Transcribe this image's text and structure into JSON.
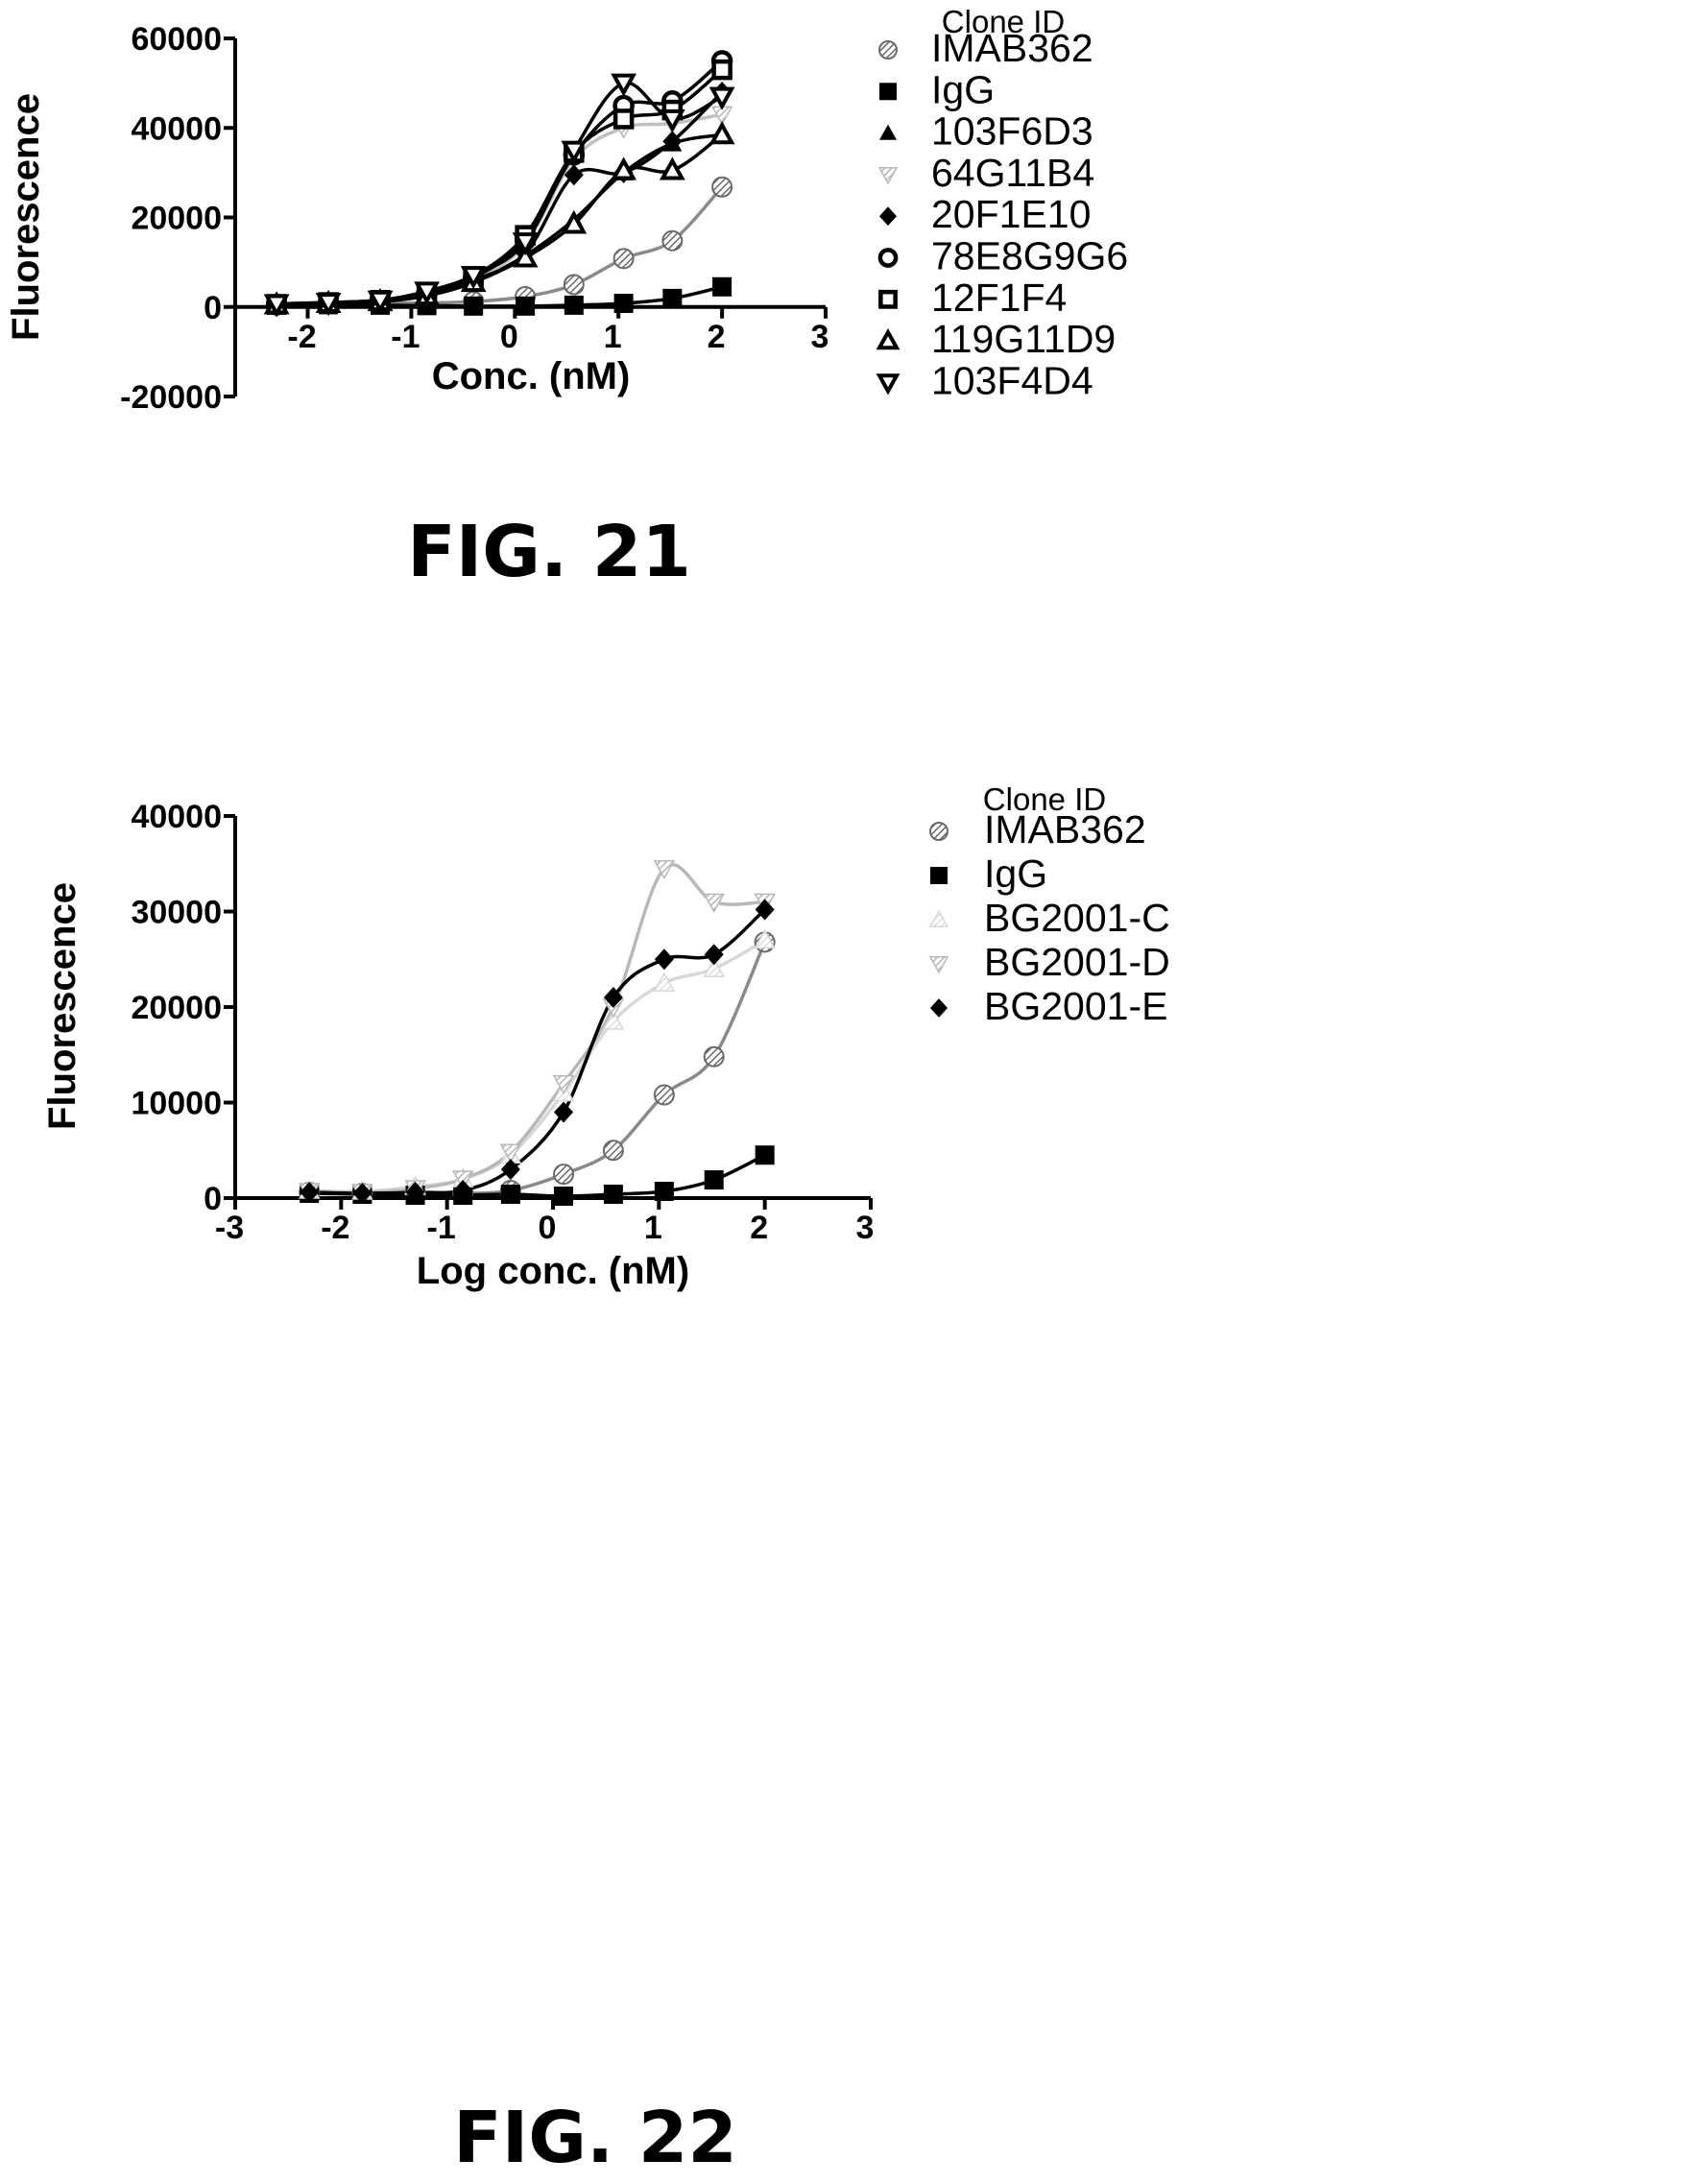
{
  "chart_data": [
    {
      "type": "scatter",
      "caption": "FIG. 21",
      "xlabel": "Conc. (nM)",
      "ylabel": "Fluorescence",
      "xlim": [
        -2.7,
        3
      ],
      "ylim": [
        -20000,
        60000
      ],
      "xticks": [
        -2,
        -1,
        0,
        1,
        2,
        3
      ],
      "yticks": [
        -20000,
        0,
        20000,
        40000,
        60000
      ],
      "grid": false,
      "legend_title": "Clone ID",
      "legend_position": "right",
      "series": [
        {
          "name": "IMAB362",
          "marker": "circle-hatched",
          "color": "#8a8a8a",
          "x": [
            -2.3,
            -1.8,
            -1.3,
            -0.85,
            -0.4,
            0.1,
            0.57,
            1.05,
            1.52,
            2.0
          ],
          "y": [
            500,
            800,
            900,
            900,
            1200,
            2300,
            5000,
            10800,
            14800,
            26800
          ]
        },
        {
          "name": "IgG",
          "marker": "square-filled",
          "color": "#000000",
          "x": [
            -2.3,
            -1.8,
            -1.3,
            -0.85,
            -0.4,
            0.1,
            0.57,
            1.05,
            1.52,
            2.0
          ],
          "y": [
            400,
            500,
            400,
            300,
            200,
            200,
            400,
            800,
            1900,
            4500
          ]
        },
        {
          "name": "103F6D3",
          "marker": "triangle-filled",
          "color": "#000000",
          "x": [
            -2.3,
            -1.8,
            -1.3,
            -0.85,
            -0.4,
            0.1,
            0.57,
            1.05,
            1.52,
            2.0
          ],
          "y": [
            500,
            800,
            1200,
            2500,
            5500,
            11500,
            19500,
            30000,
            36500,
            38500
          ]
        },
        {
          "name": "64G11B4",
          "marker": "triangle-down-hatched",
          "color": "#c0c0c0",
          "x": [
            -2.3,
            -1.8,
            -1.3,
            -0.85,
            -0.4,
            0.1,
            0.57,
            1.05,
            1.52,
            2.0
          ],
          "y": [
            700,
            1000,
            1500,
            3000,
            6000,
            14000,
            33000,
            40000,
            41000,
            43000
          ]
        },
        {
          "name": "20F1E10",
          "marker": "diamond-filled",
          "color": "#000000",
          "x": [
            -2.3,
            -1.8,
            -1.3,
            -0.85,
            -0.4,
            0.1,
            0.57,
            1.05,
            1.52,
            2.0
          ],
          "y": [
            600,
            900,
            1300,
            2800,
            6000,
            12000,
            29500,
            30000,
            37000,
            48000
          ]
        },
        {
          "name": "78E8G9G6",
          "marker": "circle-open",
          "color": "#000000",
          "x": [
            -2.3,
            -1.8,
            -1.3,
            -0.85,
            -0.4,
            0.1,
            0.57,
            1.05,
            1.52,
            2.0
          ],
          "y": [
            500,
            900,
            1400,
            3000,
            6500,
            15000,
            34000,
            45000,
            46000,
            55000
          ]
        },
        {
          "name": "12F1F4",
          "marker": "square-open",
          "color": "#000000",
          "x": [
            -2.3,
            -1.8,
            -1.3,
            -0.85,
            -0.4,
            0.1,
            0.57,
            1.05,
            1.52,
            2.0
          ],
          "y": [
            600,
            1000,
            1500,
            3200,
            6800,
            16000,
            34500,
            42000,
            44000,
            53000
          ]
        },
        {
          "name": "119G11D9",
          "marker": "triangle-open",
          "color": "#000000",
          "x": [
            -2.3,
            -1.8,
            -1.3,
            -0.85,
            -0.4,
            0.1,
            0.57,
            1.05,
            1.52,
            2.0
          ],
          "y": [
            500,
            800,
            1200,
            2500,
            5500,
            11000,
            18500,
            30500,
            30500,
            38500
          ]
        },
        {
          "name": "103F4D4",
          "marker": "triangle-down-open",
          "color": "#000000",
          "x": [
            -2.3,
            -1.8,
            -1.3,
            -0.85,
            -0.4,
            0.1,
            0.57,
            1.05,
            1.52,
            2.0
          ],
          "y": [
            700,
            1000,
            1500,
            3500,
            7000,
            14500,
            35000,
            50000,
            42000,
            47000
          ]
        }
      ]
    },
    {
      "type": "scatter",
      "caption": "FIG. 22",
      "xlabel": "Log conc. (nM)",
      "ylabel": "Fluorescence",
      "xlim": [
        -3,
        3
      ],
      "ylim": [
        0,
        40000
      ],
      "xticks": [
        -3,
        -2,
        -1,
        0,
        1,
        2,
        3
      ],
      "yticks": [
        0,
        10000,
        20000,
        30000,
        40000
      ],
      "grid": false,
      "legend_title": "Clone ID",
      "legend_position": "right",
      "series": [
        {
          "name": "IMAB362",
          "marker": "circle-hatched",
          "color": "#8a8a8a",
          "x": [
            -2.3,
            -1.8,
            -1.3,
            -0.85,
            -0.4,
            0.1,
            0.57,
            1.05,
            1.52,
            2.0
          ],
          "y": [
            600,
            500,
            500,
            500,
            800,
            2500,
            5000,
            10800,
            14800,
            26800
          ]
        },
        {
          "name": "IgG",
          "marker": "square-filled",
          "color": "#000000",
          "x": [
            -2.3,
            -1.8,
            -1.3,
            -0.85,
            -0.4,
            0.1,
            0.57,
            1.05,
            1.52,
            2.0
          ],
          "y": [
            500,
            400,
            300,
            300,
            400,
            200,
            400,
            700,
            1900,
            4500
          ]
        },
        {
          "name": "BG2001-C",
          "marker": "triangle-hatched",
          "color": "#d8d8d8",
          "x": [
            -2.3,
            -1.8,
            -1.3,
            -0.85,
            -0.4,
            0.1,
            0.57,
            1.05,
            1.52,
            2.0
          ],
          "y": [
            800,
            700,
            1200,
            2000,
            4500,
            11000,
            18500,
            22500,
            24000,
            27000
          ]
        },
        {
          "name": "BG2001-D",
          "marker": "triangle-down-hatched",
          "color": "#b8b8b8",
          "x": [
            -2.3,
            -1.8,
            -1.3,
            -0.85,
            -0.4,
            0.1,
            0.57,
            1.05,
            1.52,
            2.0
          ],
          "y": [
            700,
            600,
            1000,
            2000,
            4800,
            12000,
            20000,
            34500,
            31000,
            31000
          ]
        },
        {
          "name": "BG2001-E",
          "marker": "diamond-filled",
          "color": "#000000",
          "x": [
            -2.3,
            -1.8,
            -1.3,
            -0.85,
            -0.4,
            0.1,
            0.57,
            1.05,
            1.52,
            2.0
          ],
          "y": [
            600,
            500,
            600,
            800,
            3000,
            9000,
            21000,
            25000,
            25500,
            30200
          ]
        }
      ]
    }
  ]
}
